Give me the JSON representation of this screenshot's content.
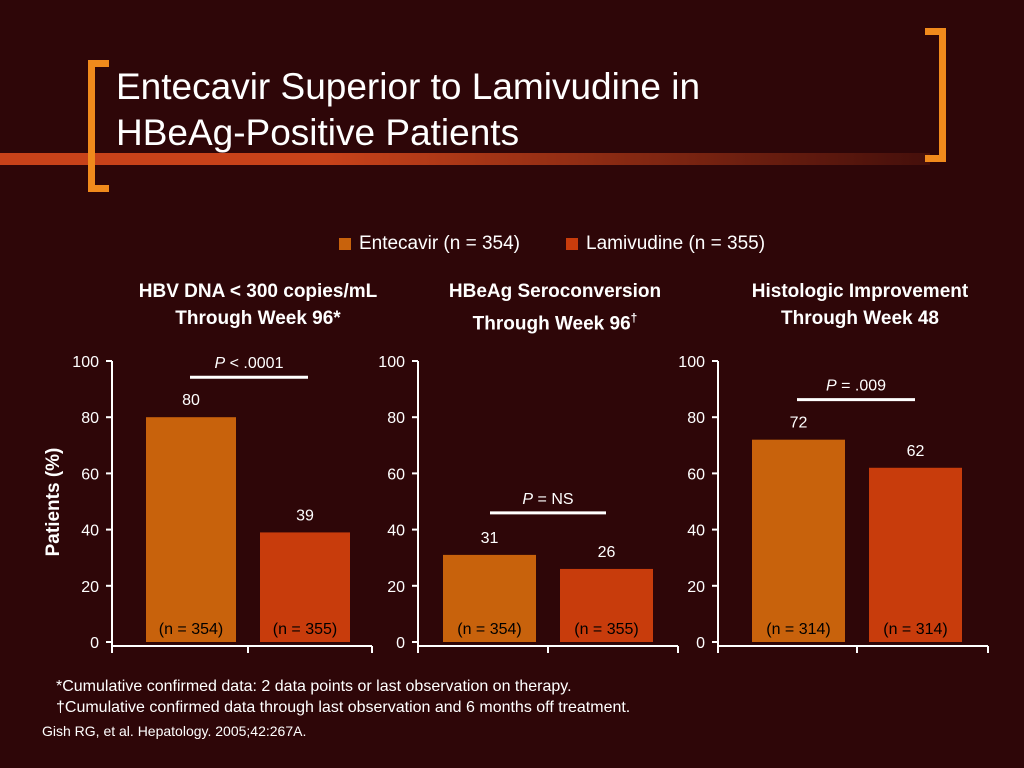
{
  "slide": {
    "title_line1": "Entecavir Superior to Lamivudine in",
    "title_line2": "HBeAg-Positive Patients"
  },
  "legend": {
    "entecavir": "Entecavir (n = 354)",
    "lamivudine": "Lamivudine (n = 355)"
  },
  "colors": {
    "entecavir": "#c8620c",
    "lamivudine": "#c83c0c",
    "accent": "#f08a1c"
  },
  "chart_data": [
    {
      "type": "bar",
      "title_line1": "HBV DNA < 300 copies/mL",
      "title_line2": "Through Week 96*",
      "ylabel": "Patients (%)",
      "ylim": [
        0,
        100
      ],
      "yticks": [
        0,
        20,
        40,
        60,
        80,
        100
      ],
      "values": [
        80,
        39
      ],
      "n_labels": [
        "(n = 354)",
        "(n = 355)"
      ],
      "p_italic": "P",
      "p_rest": " < .0001"
    },
    {
      "type": "bar",
      "title_line1": "HBeAg Seroconversion",
      "title_line2": "Through Week 96",
      "title_sup": "†",
      "ylim": [
        0,
        100
      ],
      "yticks": [
        0,
        20,
        40,
        60,
        80,
        100
      ],
      "values": [
        31,
        26
      ],
      "n_labels": [
        "(n = 354)",
        "(n = 355)"
      ],
      "p_italic": "P",
      "p_rest": " = NS"
    },
    {
      "type": "bar",
      "title_line1": "Histologic Improvement",
      "title_line2": "Through Week 48",
      "ylim": [
        0,
        100
      ],
      "yticks": [
        0,
        20,
        40,
        60,
        80,
        100
      ],
      "values": [
        72,
        62
      ],
      "n_labels": [
        "(n = 314)",
        "(n = 314)"
      ],
      "p_italic": "P",
      "p_rest": " = .009"
    }
  ],
  "footnotes": {
    "line1": "*Cumulative confirmed data: 2 data points or last observation on therapy.",
    "line2": "†Cumulative confirmed data through last observation and 6 months off treatment.",
    "citation": "Gish RG, et al. Hepatology. 2005;42:267A."
  }
}
